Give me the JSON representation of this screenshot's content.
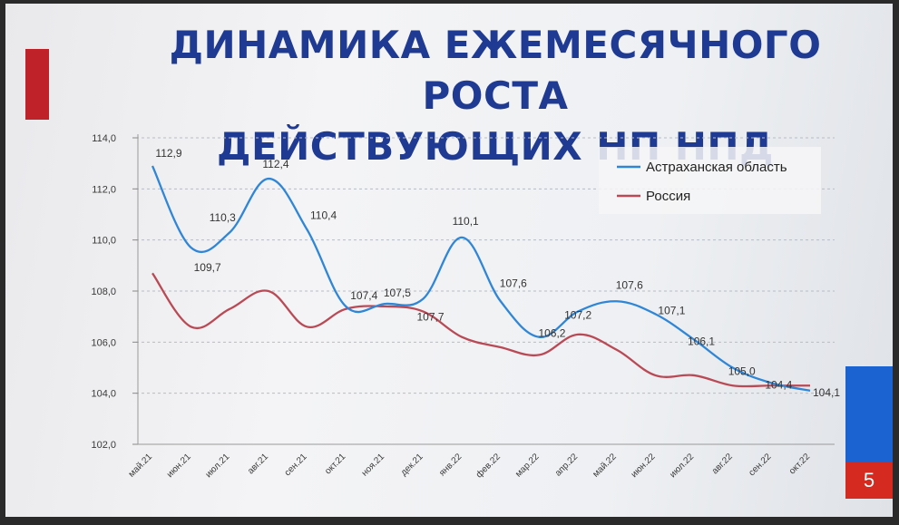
{
  "slide": {
    "title_line1": "ДИНАМИКА ЕЖЕМЕСЯЧНОГО РОСТА",
    "title_line2": "ДЕЙСТВУЮЩИХ НП НПД",
    "page_number": "5"
  },
  "colors": {
    "astrakhan": "#2f86d6",
    "russia": "#b94a55",
    "title": "#1f3a93",
    "accent_red": "#c0222a",
    "accent_blue": "#1b63d0"
  },
  "chart_data": {
    "type": "line",
    "categories": [
      "май.21",
      "июн.21",
      "июл.21",
      "авг.21",
      "сен.21",
      "окт.21",
      "ноя.21",
      "дек.21",
      "янв.22",
      "фев.22",
      "мар.22",
      "апр.22",
      "май.22",
      "июн.22",
      "июл.22",
      "авг.22",
      "сен.22",
      "окт.22"
    ],
    "series": [
      {
        "name": "Астраханская область",
        "values": [
          112.9,
          109.7,
          110.3,
          112.4,
          110.4,
          107.4,
          107.5,
          107.7,
          110.1,
          107.6,
          106.2,
          107.2,
          107.6,
          107.1,
          106.1,
          105.0,
          104.4,
          104.1
        ],
        "labels": [
          "112,9",
          "109,7",
          "110,3",
          "112,4",
          "110,4",
          "107,4",
          "107,5",
          "107,7",
          "110,1",
          "107,6",
          "106,2",
          "107,2",
          "107,6",
          "107,1",
          "106,1",
          "105,0",
          "104,4",
          "104,1"
        ]
      },
      {
        "name": "Россия",
        "values": [
          108.7,
          106.6,
          107.3,
          108.0,
          106.6,
          107.3,
          107.4,
          107.2,
          106.2,
          105.8,
          105.5,
          106.3,
          105.7,
          104.7,
          104.7,
          104.3,
          104.3,
          104.3
        ]
      }
    ],
    "ylim": [
      102,
      114
    ],
    "yticks": [
      "102,0",
      "104,0",
      "106,0",
      "108,0",
      "110,0",
      "112,0",
      "114,0"
    ],
    "ytick_values": [
      102,
      104,
      106,
      108,
      110,
      112,
      114
    ],
    "grid": "horizontal dashed",
    "legend_position": "top-right",
    "xlabel": "",
    "ylabel": ""
  }
}
